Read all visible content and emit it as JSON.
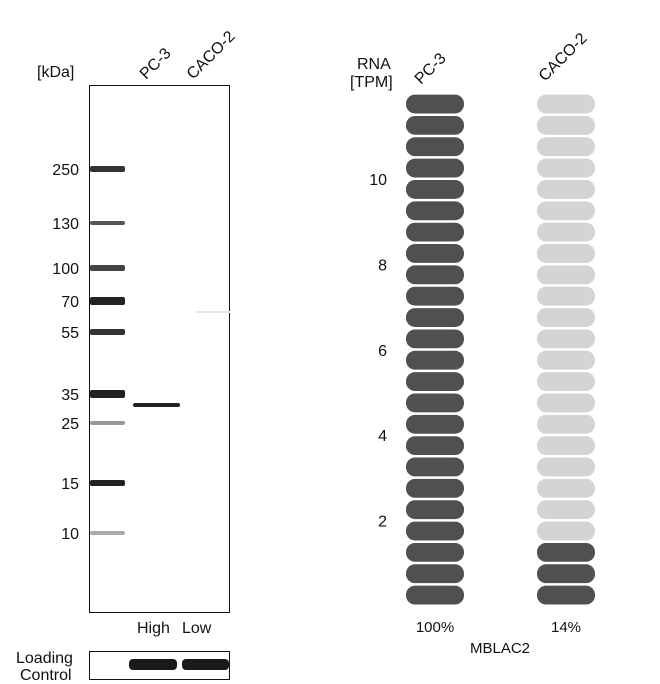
{
  "blot": {
    "unit_label": "[kDa]",
    "lanes": [
      "PC-3",
      "CACO-2"
    ],
    "markers": [
      "250",
      "130",
      "100",
      "70",
      "55",
      "35",
      "25",
      "15",
      "10"
    ],
    "lane_levels": [
      "High",
      "Low"
    ],
    "loading_control_label_1": "Loading",
    "loading_control_label_2": "Control"
  },
  "chart_data": {
    "type": "bar",
    "ylabel_1": "RNA",
    "ylabel_2": "[TPM]",
    "categories": [
      "PC-3",
      "CACO-2"
    ],
    "yticks": [
      "2",
      "4",
      "6",
      "8",
      "10"
    ],
    "segments_total": 24,
    "segment_tpm": 0.5,
    "filled_segments": [
      24,
      3
    ],
    "percent_labels": [
      "100%",
      "14%"
    ],
    "gene": "MBLAC2",
    "colors": {
      "filled": "#505050",
      "empty": "#d4d4d4"
    }
  }
}
